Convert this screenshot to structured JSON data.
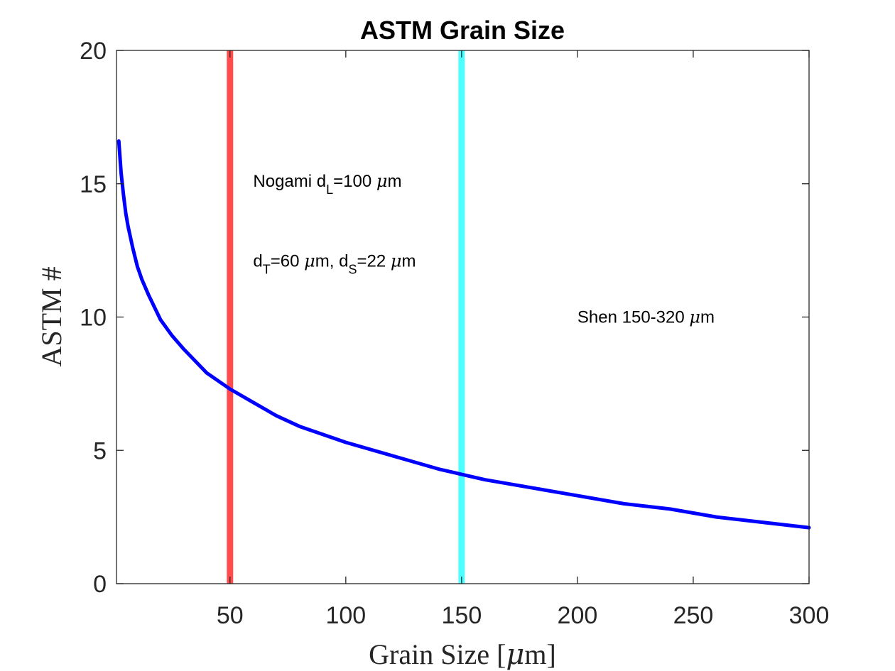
{
  "chart_data": {
    "type": "line",
    "title": "ASTM Grain Size",
    "xlabel": "Grain Size [μm]",
    "xlabel_parts": {
      "main": "Grain Size [",
      "greek": "μ",
      "tail": "m]"
    },
    "ylabel": "ASTM #",
    "xlim": [
      1,
      300
    ],
    "ylim": [
      0,
      20
    ],
    "x_ticks": [
      50,
      100,
      150,
      200,
      250,
      300
    ],
    "y_ticks": [
      0,
      5,
      10,
      15,
      20
    ],
    "grid": false,
    "box": true,
    "series": [
      {
        "color": "#0000ff",
        "x": [
          2,
          3,
          4,
          5,
          6,
          8,
          10,
          12,
          15,
          20,
          25,
          30,
          40,
          50,
          60,
          70,
          80,
          90,
          100,
          120,
          140,
          150,
          160,
          180,
          200,
          220,
          240,
          260,
          280,
          300
        ],
        "y": [
          16.6,
          15.4,
          14.6,
          13.9,
          13.4,
          12.6,
          11.9,
          11.4,
          10.8,
          9.9,
          9.3,
          8.8,
          7.9,
          7.3,
          6.8,
          6.3,
          5.9,
          5.6,
          5.3,
          4.8,
          4.3,
          4.1,
          3.9,
          3.6,
          3.3,
          3.0,
          2.8,
          2.5,
          2.3,
          2.1
        ]
      }
    ],
    "vertical_lines": [
      {
        "x": 50,
        "color": "#ff4d4d"
      },
      {
        "x": 150,
        "color": "#4dffff"
      }
    ],
    "annotations": [
      {
        "x": 60,
        "y": 15,
        "parts": [
          {
            "t": "Nogami d"
          },
          {
            "t": "L",
            "sub": true
          },
          {
            "t": "=100 "
          },
          {
            "t": "μ",
            "greek": true
          },
          {
            "t": "m"
          }
        ]
      },
      {
        "x": 60,
        "y": 12,
        "parts": [
          {
            "t": "d"
          },
          {
            "t": "T",
            "sub": true
          },
          {
            "t": "=60 "
          },
          {
            "t": "μ",
            "greek": true
          },
          {
            "t": "m, d"
          },
          {
            "t": "S",
            "sub": true
          },
          {
            "t": "=22 "
          },
          {
            "t": "μ",
            "greek": true
          },
          {
            "t": "m"
          }
        ]
      },
      {
        "x": 200,
        "y": 9.9,
        "parts": [
          {
            "t": "Shen 150-320 "
          },
          {
            "t": "μ",
            "greek": true
          },
          {
            "t": "m"
          }
        ]
      }
    ]
  }
}
